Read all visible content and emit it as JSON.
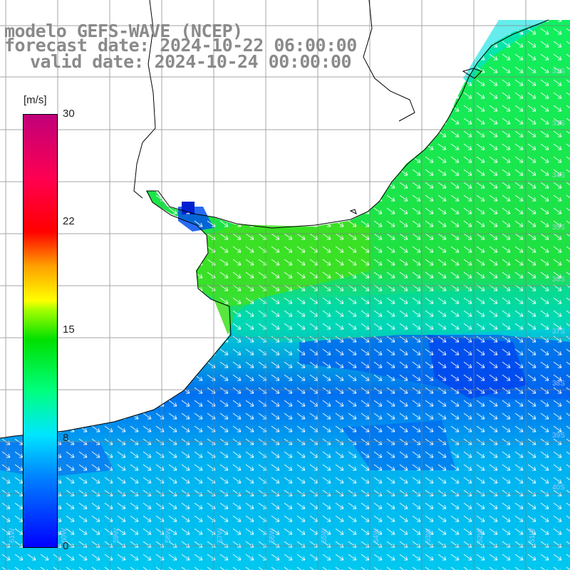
{
  "title": {
    "line1": "modelo GEFS-WAVE (NCEP)",
    "line2": "forecast date: 2024-10-22 06:00:00",
    "line3": "valid date: 2024-10-24 00:00:00"
  },
  "colorbar": {
    "unit": "[m/s]",
    "ticks": [
      "30",
      "22",
      "15",
      "8",
      "0"
    ],
    "tick_values": [
      30,
      22,
      15,
      8,
      0
    ],
    "range": [
      0,
      30
    ],
    "colors": [
      "#0000ff",
      "#0080ff",
      "#00e5ff",
      "#00ff80",
      "#00e000",
      "#aaff00",
      "#ffff00",
      "#ffa000",
      "#ff0000",
      "#ff0050",
      "#c0007a"
    ]
  },
  "map": {
    "variable": "wind speed and direction",
    "ocean_colors": {
      "strong": "#20e040",
      "moderate": "#00c8f0",
      "weak": "#0050f0"
    },
    "land_color": "#ffffff",
    "coast_color": "#000000",
    "grid_color": "#7f7f7f",
    "arrow_color": "#ffffff"
  }
}
